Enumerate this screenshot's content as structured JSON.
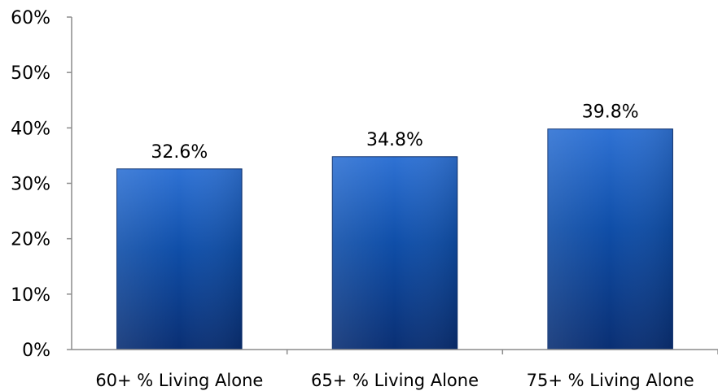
{
  "chart_data": {
    "type": "bar",
    "title": "",
    "xlabel": "",
    "ylabel": "",
    "categories": [
      "60+ % Living Alone",
      "65+ % Living Alone",
      "75+ % Living Alone"
    ],
    "values": [
      32.6,
      34.8,
      39.8
    ],
    "data_labels": [
      "32.6%",
      "34.8%",
      "39.8%"
    ],
    "ylim": [
      0,
      60
    ],
    "yticks": [
      0,
      10,
      20,
      30,
      40,
      50,
      60
    ],
    "ytick_labels": [
      "0%",
      "10%",
      "20%",
      "30%",
      "40%",
      "50%",
      "60%"
    ],
    "grid": false,
    "legend": "none",
    "colors": {
      "bar_top": "#2f72d4",
      "bar_mid": "#0f4ea8",
      "bar_bottom": "#0a2f73",
      "bar_edge": "#0b2f6e",
      "axis": "#8c8c8c"
    }
  }
}
